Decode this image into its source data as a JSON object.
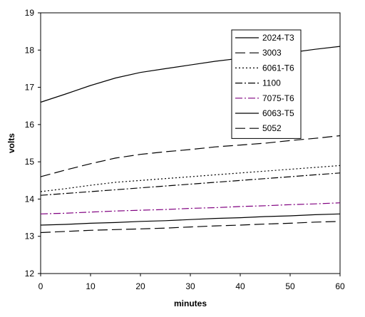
{
  "chart_data": {
    "type": "line",
    "xlabel": "minutes",
    "ylabel": "volts",
    "xlim": [
      0,
      60
    ],
    "ylim": [
      12,
      19
    ],
    "xticks": [
      0,
      10,
      20,
      30,
      40,
      50,
      60
    ],
    "yticks": [
      12,
      13,
      14,
      15,
      16,
      17,
      18,
      19
    ],
    "grid": false,
    "legend_position": "top-right",
    "x": [
      0,
      5,
      10,
      15,
      20,
      25,
      30,
      35,
      40,
      45,
      50,
      55,
      60
    ],
    "series": [
      {
        "name": "2024-T3",
        "color": "#000000",
        "dash": "solid",
        "values": [
          16.6,
          16.82,
          17.05,
          17.25,
          17.4,
          17.5,
          17.6,
          17.7,
          17.78,
          17.85,
          17.93,
          18.02,
          18.1
        ]
      },
      {
        "name": "3003",
        "color": "#000000",
        "dash": "longdash",
        "values": [
          14.6,
          14.78,
          14.95,
          15.1,
          15.2,
          15.27,
          15.33,
          15.4,
          15.45,
          15.5,
          15.57,
          15.63,
          15.7
        ]
      },
      {
        "name": "6061-T6",
        "color": "#000000",
        "dash": "dotted",
        "values": [
          14.2,
          14.28,
          14.37,
          14.45,
          14.5,
          14.55,
          14.6,
          14.65,
          14.7,
          14.75,
          14.8,
          14.85,
          14.9
        ]
      },
      {
        "name": "1100",
        "color": "#000000",
        "dash": "dashdot",
        "values": [
          14.1,
          14.15,
          14.2,
          14.25,
          14.3,
          14.35,
          14.4,
          14.45,
          14.5,
          14.55,
          14.6,
          14.65,
          14.7
        ]
      },
      {
        "name": "7075-T6",
        "color": "#800080",
        "dash": "dashdot",
        "values": [
          13.6,
          13.62,
          13.65,
          13.68,
          13.7,
          13.72,
          13.75,
          13.77,
          13.8,
          13.82,
          13.85,
          13.87,
          13.9
        ]
      },
      {
        "name": "6063-T5",
        "color": "#000000",
        "dash": "solid",
        "values": [
          13.3,
          13.32,
          13.35,
          13.37,
          13.4,
          13.42,
          13.45,
          13.48,
          13.5,
          13.53,
          13.55,
          13.58,
          13.6
        ]
      },
      {
        "name": "5052",
        "color": "#000000",
        "dash": "longdash",
        "values": [
          13.1,
          13.13,
          13.16,
          13.18,
          13.2,
          13.22,
          13.25,
          13.28,
          13.3,
          13.33,
          13.35,
          13.38,
          13.4
        ]
      }
    ]
  }
}
